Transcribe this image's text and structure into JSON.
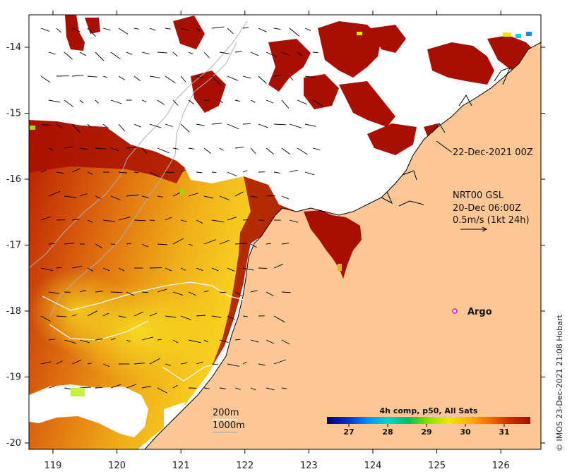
{
  "colors": {
    "land": "#fdc795",
    "warm": "#a80f00",
    "cloud": "#ffffff",
    "frame": "#000000",
    "contour_200": "#ffffff",
    "contour_1000": "#b0b0b0",
    "argo": "#e000e0"
  },
  "axes": {
    "lon_ticks": [
      "119",
      "120",
      "121",
      "122",
      "123",
      "124",
      "125",
      "126"
    ],
    "lat_ticks": [
      "-14",
      "-15",
      "-16",
      "-17",
      "-18",
      "-19",
      "-20"
    ]
  },
  "annotations": {
    "track_date": "22-Dec-2021 00Z",
    "current_product": "NRT00 GSL",
    "current_time": "20-Dec 06:00Z",
    "current_scale": "0.5m/s (1kt 24h)",
    "argo_label": "Argo",
    "contour_200": "200m",
    "contour_1000": "1000m"
  },
  "colorbar": {
    "title": "4h comp, p50, All Sats",
    "ticks": [
      "27",
      "28",
      "29",
      "30",
      "31"
    ],
    "stops": [
      "#00007a",
      "#0030d0",
      "#0090ff",
      "#00d8d0",
      "#00c060",
      "#90e000",
      "#f0e800",
      "#ffb000",
      "#f07000",
      "#d02800",
      "#a80f00"
    ]
  },
  "argo_float": {
    "lon": 125.28,
    "lat": -18.0
  },
  "credit": "© IMOS 23-Dec-2021 21:08 Hobart"
}
